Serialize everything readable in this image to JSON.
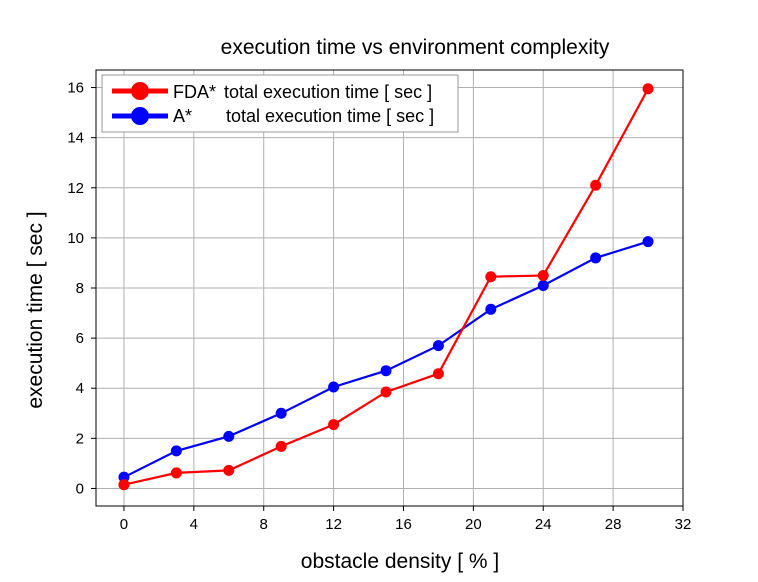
{
  "chart_data": {
    "type": "line",
    "title": "execution time vs environment complexity",
    "xlabel": "obstacle density [ % ]",
    "ylabel": "execution time [ sec ]",
    "xlim": [
      -1.6,
      32
    ],
    "ylim": [
      -0.7,
      16.7
    ],
    "xticks": [
      0,
      4,
      8,
      12,
      16,
      20,
      24,
      28,
      32
    ],
    "yticks": [
      0,
      2,
      4,
      6,
      8,
      10,
      12,
      14,
      16
    ],
    "grid": true,
    "legend_position": "top-left",
    "x": [
      0,
      3,
      6,
      9,
      12,
      15,
      18,
      21,
      24,
      27,
      30
    ],
    "series": [
      {
        "name": "FDA* total execution time [ sec ]",
        "legend_prefix": "FDA*",
        "legend_text": "total execution time [ sec ]",
        "color": "#ff0000",
        "values": [
          0.15,
          0.62,
          0.72,
          1.68,
          2.55,
          3.85,
          4.58,
          8.45,
          8.5,
          12.1,
          15.95
        ]
      },
      {
        "name": "A* total execution time [ sec ]",
        "legend_prefix": "A*",
        "legend_text": "total execution time [ sec ]",
        "color": "#0000ff",
        "values": [
          0.45,
          1.5,
          2.08,
          3.0,
          4.05,
          4.7,
          5.7,
          7.15,
          8.1,
          9.2,
          9.85
        ]
      }
    ]
  }
}
